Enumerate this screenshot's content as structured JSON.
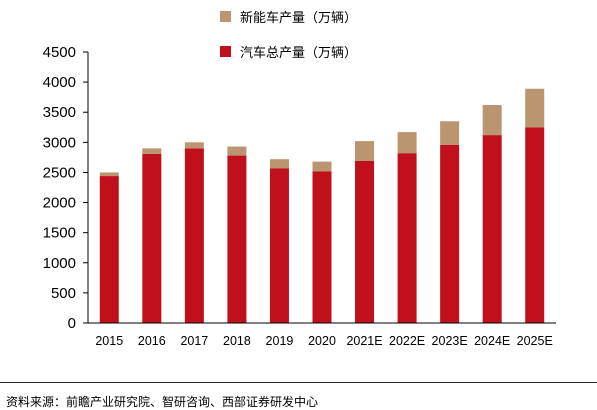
{
  "chart_data": {
    "type": "bar",
    "stacked": true,
    "categories": [
      "2015",
      "2016",
      "2017",
      "2018",
      "2019",
      "2020",
      "2021E",
      "2022E",
      "2023E",
      "2024E",
      "2025E"
    ],
    "series": [
      {
        "name": "汽车总产量（万辆）",
        "color": "#c0101c",
        "values": [
          2440,
          2810,
          2900,
          2780,
          2570,
          2520,
          2690,
          2820,
          2960,
          3120,
          3250
        ]
      },
      {
        "name": "新能车产量（万辆）",
        "color": "#bb9470",
        "values": [
          60,
          90,
          100,
          150,
          150,
          160,
          330,
          350,
          390,
          500,
          640
        ]
      }
    ],
    "ylim": [
      0,
      4500
    ],
    "yticks": [
      0,
      500,
      1000,
      1500,
      2000,
      2500,
      3000,
      3500,
      4000,
      4500
    ],
    "legend_position": "top-center",
    "legend_order": [
      1,
      0
    ],
    "grid": false
  },
  "source": "资料来源：前瞻产业研究院、智研咨询、西部证券研发中心"
}
